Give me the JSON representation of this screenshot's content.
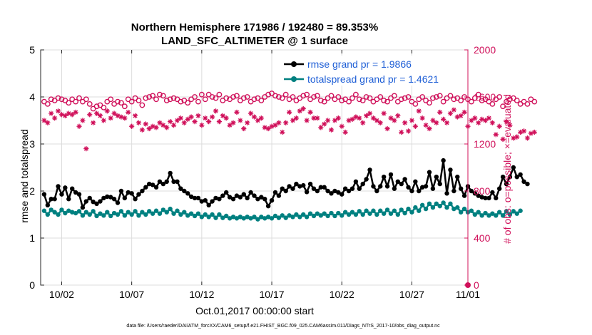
{
  "chart_data": {
    "type": "line",
    "title_line1": "Northern Hemisphere 171986 / 192480 = 89.353%",
    "title_line2": "LAND_SFC_ALTIMETER @ 1 surface",
    "xlabel": "Oct.01,2017 00:00:00 start",
    "ylabel_left": "rmse and totalspread",
    "ylabel_right": "# of obs: o=possible; ×=evaluated",
    "ylim_left": [
      0,
      5
    ],
    "ylim_right": [
      0,
      2000
    ],
    "xlim": [
      0.5,
      31.0
    ],
    "x_ticks": [
      {
        "value": 2,
        "label": "10/02"
      },
      {
        "value": 7,
        "label": "10/07"
      },
      {
        "value": 12,
        "label": "10/12"
      },
      {
        "value": 17,
        "label": "10/17"
      },
      {
        "value": 22,
        "label": "10/22"
      },
      {
        "value": 27,
        "label": "10/27"
      },
      {
        "value": 31,
        "label": "11/01"
      }
    ],
    "y_ticks_left": [
      "0",
      "1",
      "2",
      "3",
      "4",
      "5"
    ],
    "y_ticks_right": [
      "0",
      "400",
      "800",
      "1200",
      "1600",
      "2000"
    ],
    "legend_position": "top-right",
    "footnote": "data file: /Users/raeder/DAI/ATM_forcXX/CAM6_setup/f.e21.FHIST_BGC.f09_025.CAM6assim.011/Diags_NTrS_2017-10/obs_diag_output.nc",
    "colors": {
      "rmse": "#000000",
      "spread": "#008080",
      "obs": "#d0105a"
    },
    "x_start": 0.75,
    "x_step": 0.25,
    "series": [
      {
        "name": "rmse grand pr = 1.9866",
        "axis": "left",
        "marker": "dot",
        "values": [
          1.93,
          1.7,
          1.83,
          1.83,
          2.1,
          1.93,
          2.07,
          1.83,
          2.05,
          1.97,
          1.93,
          1.65,
          1.78,
          1.85,
          1.77,
          1.73,
          1.78,
          1.85,
          1.88,
          1.87,
          1.83,
          1.75,
          2.0,
          1.85,
          1.97,
          1.95,
          1.83,
          1.93,
          2.0,
          2.08,
          2.15,
          2.13,
          2.08,
          2.2,
          2.15,
          2.2,
          2.38,
          2.2,
          2.2,
          2.05,
          2.0,
          1.95,
          1.88,
          1.85,
          1.85,
          1.78,
          1.8,
          1.7,
          1.78,
          1.85,
          1.83,
          1.9,
          1.97,
          1.87,
          1.83,
          1.9,
          1.87,
          1.93,
          1.85,
          1.97,
          1.9,
          1.83,
          1.87,
          1.83,
          1.68,
          1.8,
          1.97,
          1.9,
          2.05,
          2.0,
          2.1,
          2.05,
          2.15,
          2.1,
          2.12,
          1.98,
          2.15,
          2.05,
          2.0,
          2.08,
          2.08,
          2.0,
          1.95,
          2.0,
          1.97,
          1.93,
          2.05,
          2.0,
          2.05,
          2.2,
          2.05,
          2.15,
          2.25,
          2.45,
          2.1,
          2.0,
          2.1,
          2.3,
          2.1,
          2.35,
          2.05,
          2.2,
          2.15,
          2.25,
          2.08,
          2.0,
          2.2,
          2.0,
          2.08,
          2.1,
          2.4,
          2.05,
          2.3,
          2.15,
          2.65,
          1.95,
          2.45,
          2.0,
          2.3,
          2.05,
          1.9,
          2.1,
          2.0,
          1.95,
          1.9,
          1.87,
          1.85,
          1.85,
          1.97,
          1.85,
          2.05,
          2.3,
          2.15,
          2.3,
          2.5,
          2.3,
          2.35,
          2.2,
          2.15
        ]
      },
      {
        "name": "totalspread grand pr = 1.4621",
        "axis": "left",
        "marker": "dot",
        "values": [
          1.58,
          1.5,
          1.6,
          1.55,
          1.5,
          1.6,
          1.53,
          1.58,
          1.55,
          1.53,
          1.57,
          1.48,
          1.55,
          1.5,
          1.57,
          1.47,
          1.52,
          1.48,
          1.55,
          1.47,
          1.53,
          1.5,
          1.57,
          1.48,
          1.55,
          1.5,
          1.57,
          1.48,
          1.55,
          1.5,
          1.57,
          1.52,
          1.58,
          1.52,
          1.6,
          1.55,
          1.62,
          1.52,
          1.58,
          1.5,
          1.55,
          1.48,
          1.52,
          1.47,
          1.52,
          1.45,
          1.5,
          1.45,
          1.5,
          1.43,
          1.5,
          1.43,
          1.47,
          1.42,
          1.45,
          1.42,
          1.45,
          1.42,
          1.45,
          1.42,
          1.45,
          1.4,
          1.45,
          1.42,
          1.45,
          1.42,
          1.47,
          1.43,
          1.48,
          1.43,
          1.48,
          1.45,
          1.5,
          1.45,
          1.5,
          1.45,
          1.52,
          1.47,
          1.52,
          1.48,
          1.52,
          1.47,
          1.53,
          1.47,
          1.53,
          1.48,
          1.55,
          1.5,
          1.55,
          1.5,
          1.57,
          1.5,
          1.58,
          1.52,
          1.58,
          1.5,
          1.58,
          1.52,
          1.6,
          1.52,
          1.58,
          1.5,
          1.6,
          1.53,
          1.62,
          1.55,
          1.65,
          1.58,
          1.7,
          1.62,
          1.73,
          1.65,
          1.73,
          1.68,
          1.75,
          1.65,
          1.73,
          1.62,
          1.65,
          1.55,
          1.62,
          1.55,
          1.58,
          1.5,
          1.55,
          1.48,
          1.53,
          1.48,
          1.52,
          1.48,
          1.55,
          1.48,
          1.57,
          1.5,
          1.57,
          1.52,
          1.58
        ]
      },
      {
        "name": "possible",
        "axis": "right",
        "marker": "circle",
        "values": [
          1560,
          1540,
          1580,
          1570,
          1590,
          1580,
          1570,
          1550,
          1580,
          1560,
          1590,
          1560,
          1580,
          1540,
          1500,
          1520,
          1530,
          1510,
          1560,
          1580,
          1540,
          1560,
          1550,
          1520,
          1580,
          1560,
          1590,
          1570,
          1530,
          1590,
          1600,
          1610,
          1580,
          1620,
          1610,
          1570,
          1580,
          1590,
          1580,
          1560,
          1570,
          1550,
          1580,
          1600,
          1560,
          1620,
          1580,
          1620,
          1600,
          1590,
          1620,
          1570,
          1590,
          1580,
          1600,
          1610,
          1570,
          1590,
          1600,
          1560,
          1580,
          1590,
          1570,
          1600,
          1620,
          1630,
          1610,
          1600,
          1590,
          1620,
          1580,
          1600,
          1570,
          1590,
          1610,
          1620,
          1580,
          1600,
          1610,
          1570,
          1560,
          1590,
          1610,
          1580,
          1600,
          1570,
          1580,
          1560,
          1590,
          1620,
          1580,
          1570,
          1600,
          1590,
          1560,
          1580,
          1600,
          1570,
          1560,
          1590,
          1610,
          1560,
          1580,
          1590,
          1600,
          1560,
          1540,
          1580,
          1600,
          1570,
          1550,
          1590,
          1600,
          1610,
          1560,
          1590,
          1610,
          1580,
          1590,
          1570,
          1600,
          1580,
          1560,
          1590,
          1620,
          1570,
          1580,
          1560,
          1540,
          1580,
          1600,
          1520,
          1560,
          1580,
          1590,
          1570,
          1540,
          1560,
          1540,
          1580,
          1560
        ]
      },
      {
        "name": "evaluated",
        "axis": "right",
        "marker": "asterisk",
        "values": [
          1400,
          1380,
          1460,
          1420,
          1480,
          1450,
          1440,
          1460,
          1450,
          1470,
          1350,
          1400,
          1160,
          1450,
          1380,
          1460,
          1440,
          1400,
          1480,
          1420,
          1460,
          1440,
          1430,
          1420,
          1470,
          1350,
          1440,
          1380,
          1320,
          1370,
          1330,
          1350,
          1340,
          1380,
          1360,
          1340,
          1390,
          1360,
          1400,
          1420,
          1380,
          1410,
          1430,
          1390,
          1440,
          1360,
          1420,
          1390,
          1430,
          1480,
          1390,
          1440,
          1420,
          1360,
          1380,
          1470,
          1400,
          1330,
          1380,
          1460,
          1430,
          1400,
          1420,
          1340,
          1330,
          1350,
          1360,
          1380,
          1300,
          1380,
          1470,
          1400,
          1420,
          1480,
          1500,
          1400,
          1470,
          1420,
          1420,
          1340,
          1370,
          1400,
          1320,
          1400,
          1420,
          1350,
          1300,
          1400,
          1410,
          1430,
          1420,
          1380,
          1440,
          1460,
          1420,
          1400,
          1380,
          1460,
          1330,
          1420,
          1400,
          1440,
          1300,
          1380,
          1310,
          1400,
          1350,
          1480,
          1420,
          1360,
          1330,
          1400,
          1380,
          1470,
          1410,
          1380,
          1460,
          1490,
          1430,
          1440,
          1470,
          1350,
          1400,
          1420,
          1380,
          1410,
          1400,
          1420,
          1380,
          1280,
          1350,
          1240,
          1390,
          1360,
          1250,
          1260,
          1300,
          1310,
          1250,
          1290,
          1300
        ]
      }
    ]
  }
}
